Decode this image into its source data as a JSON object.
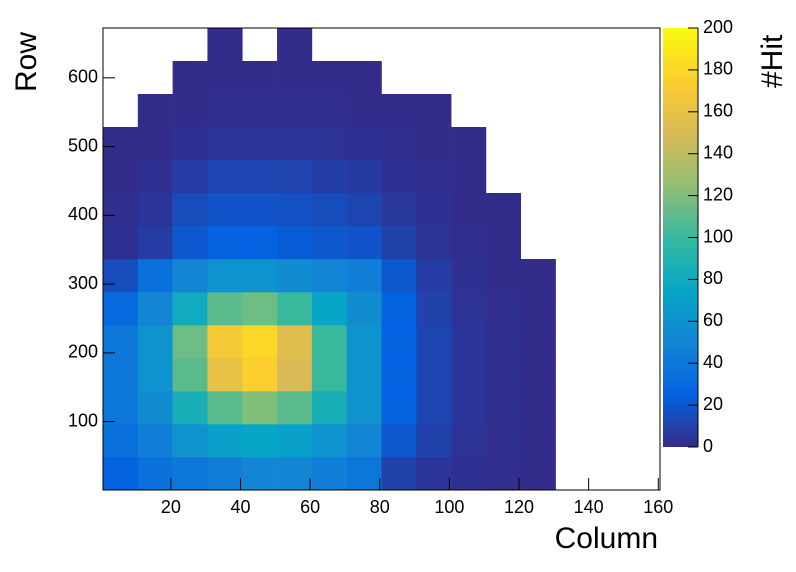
{
  "chart_data": {
    "type": "heatmap",
    "xlabel": "Column",
    "ylabel": "Row",
    "zlabel": "#Hit",
    "xbins": [
      0.5,
      10.5,
      20.5,
      30.5,
      40.5,
      50.5,
      60.5,
      70.5,
      80.5,
      90.5,
      100.5,
      110.5,
      120.5,
      130.5,
      140.5,
      150.5,
      160.5
    ],
    "ybins": [
      0.5,
      48.5,
      96.5,
      144.5,
      192.5,
      240.5,
      288.5,
      336.5,
      384.5,
      432.5,
      480.5,
      528.5,
      576.5,
      624.5,
      672.5
    ],
    "z": [
      [
        25,
        35,
        40,
        45,
        50,
        50,
        45,
        40,
        10,
        5,
        3,
        2,
        1,
        0,
        0,
        0
      ],
      [
        35,
        45,
        60,
        70,
        75,
        70,
        60,
        50,
        20,
        10,
        4,
        2,
        1,
        0,
        0,
        0
      ],
      [
        40,
        55,
        85,
        110,
        120,
        110,
        85,
        60,
        25,
        12,
        5,
        2,
        1,
        0,
        0,
        0
      ],
      [
        40,
        60,
        110,
        160,
        175,
        150,
        100,
        60,
        25,
        12,
        5,
        2,
        1,
        0,
        0,
        0
      ],
      [
        40,
        60,
        115,
        170,
        180,
        155,
        100,
        60,
        25,
        12,
        5,
        2,
        1,
        0,
        0,
        0
      ],
      [
        30,
        50,
        80,
        110,
        115,
        100,
        75,
        55,
        25,
        10,
        4,
        2,
        1,
        0,
        0,
        0
      ],
      [
        15,
        35,
        50,
        60,
        60,
        55,
        50,
        45,
        20,
        8,
        3,
        1,
        1,
        0,
        0,
        0
      ],
      [
        3,
        8,
        20,
        25,
        25,
        22,
        20,
        18,
        10,
        4,
        2,
        1,
        0,
        0,
        0,
        0
      ],
      [
        2,
        5,
        15,
        18,
        18,
        17,
        15,
        12,
        6,
        3,
        1,
        1,
        0,
        0,
        0,
        0
      ],
      [
        1,
        3,
        8,
        12,
        12,
        11,
        9,
        7,
        3,
        2,
        1,
        0,
        0,
        0,
        0,
        0
      ],
      [
        1,
        1,
        3,
        5,
        5,
        5,
        4,
        3,
        2,
        1,
        1,
        0,
        0,
        0,
        0,
        0
      ],
      [
        0,
        1,
        1,
        2,
        2,
        2,
        2,
        1,
        1,
        1,
        0,
        0,
        0,
        0,
        0,
        0
      ],
      [
        0,
        0,
        1,
        1,
        1,
        1,
        1,
        1,
        0,
        0,
        0,
        0,
        0,
        0,
        0,
        0
      ],
      [
        0,
        0,
        0,
        1,
        0,
        1,
        0,
        0,
        0,
        0,
        0,
        0,
        0,
        0,
        0,
        0
      ]
    ],
    "xlim": [
      0.5,
      160.5
    ],
    "ylim": [
      0.5,
      672.5
    ],
    "zlim": [
      0,
      200
    ],
    "xticks": [
      20,
      40,
      60,
      80,
      100,
      120,
      140,
      160
    ],
    "yticks": [
      100,
      200,
      300,
      400,
      500,
      600
    ],
    "zticks": [
      0,
      20,
      40,
      60,
      80,
      100,
      120,
      140,
      160,
      180,
      200
    ],
    "palette": [
      "#352a87",
      "#0363e1",
      "#1485d4",
      "#06a7c6",
      "#38b99e",
      "#92bf73",
      "#d9ba56",
      "#fcce2e",
      "#f9fb0e"
    ]
  }
}
